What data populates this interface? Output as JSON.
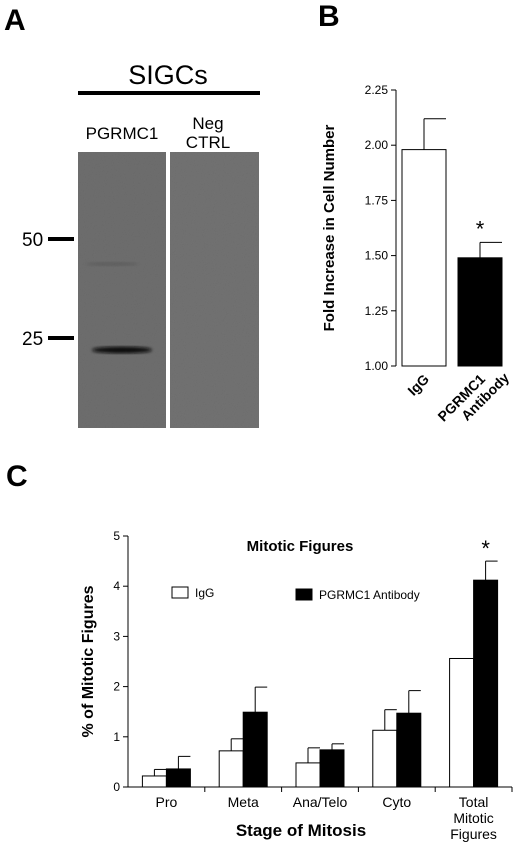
{
  "panels": {
    "a": {
      "letter": "A",
      "header": "SIGCs",
      "lanes": [
        {
          "label": "PGRMC1"
        },
        {
          "label_line1": "Neg",
          "label_line2": "CTRL"
        }
      ],
      "markers": [
        "50",
        "25"
      ]
    },
    "b": {
      "letter": "B"
    },
    "c": {
      "letter": "C"
    }
  },
  "chart_data": [
    {
      "type": "bar",
      "ylabel": "Fold  Increase in Cell Number",
      "categories": [
        "IgG",
        "PGRMC1 Antibody"
      ],
      "category_lines": [
        [
          "IgG"
        ],
        [
          "PGRMC1",
          "Antibody"
        ]
      ],
      "values": [
        1.98,
        1.49
      ],
      "errors": [
        0.14,
        0.07
      ],
      "colors": [
        "#ffffff",
        "#000000"
      ],
      "ylim": [
        1.0,
        2.25
      ],
      "yticks": [
        "1.00",
        "1.25",
        "1.50",
        "1.75",
        "2.00",
        "2.25"
      ],
      "annotations": [
        {
          "category": "PGRMC1 Antibody",
          "text": "*"
        }
      ]
    },
    {
      "type": "bar",
      "title": "Mitotic Figures",
      "xlabel": "Stage of Mitosis",
      "ylabel": "% of Mitotic Figures",
      "categories": [
        "Pro",
        "Meta",
        "Ana/Telo",
        "Cyto",
        "Total Mitotic Figures"
      ],
      "category_lines": [
        [
          "Pro"
        ],
        [
          "Meta"
        ],
        [
          "Ana/Telo"
        ],
        [
          "Cyto"
        ],
        [
          "Total",
          "Mitotic",
          "Figures"
        ]
      ],
      "series": [
        {
          "name": "IgG",
          "color": "#ffffff",
          "values": [
            0.22,
            0.72,
            0.48,
            1.13,
            2.56
          ],
          "errors": [
            0.13,
            0.24,
            0.3,
            0.41,
            0.0
          ]
        },
        {
          "name": "PGRMC1 Antibody",
          "color": "#000000",
          "values": [
            0.36,
            1.49,
            0.74,
            1.47,
            4.12
          ],
          "errors": [
            0.25,
            0.5,
            0.12,
            0.45,
            0.38
          ]
        }
      ],
      "ylim": [
        0,
        5
      ],
      "yticks": [
        "0",
        "1",
        "2",
        "3",
        "4",
        "5"
      ],
      "annotations": [
        {
          "category": "Total Mitotic Figures",
          "series": "PGRMC1 Antibody",
          "text": "*"
        }
      ]
    }
  ]
}
